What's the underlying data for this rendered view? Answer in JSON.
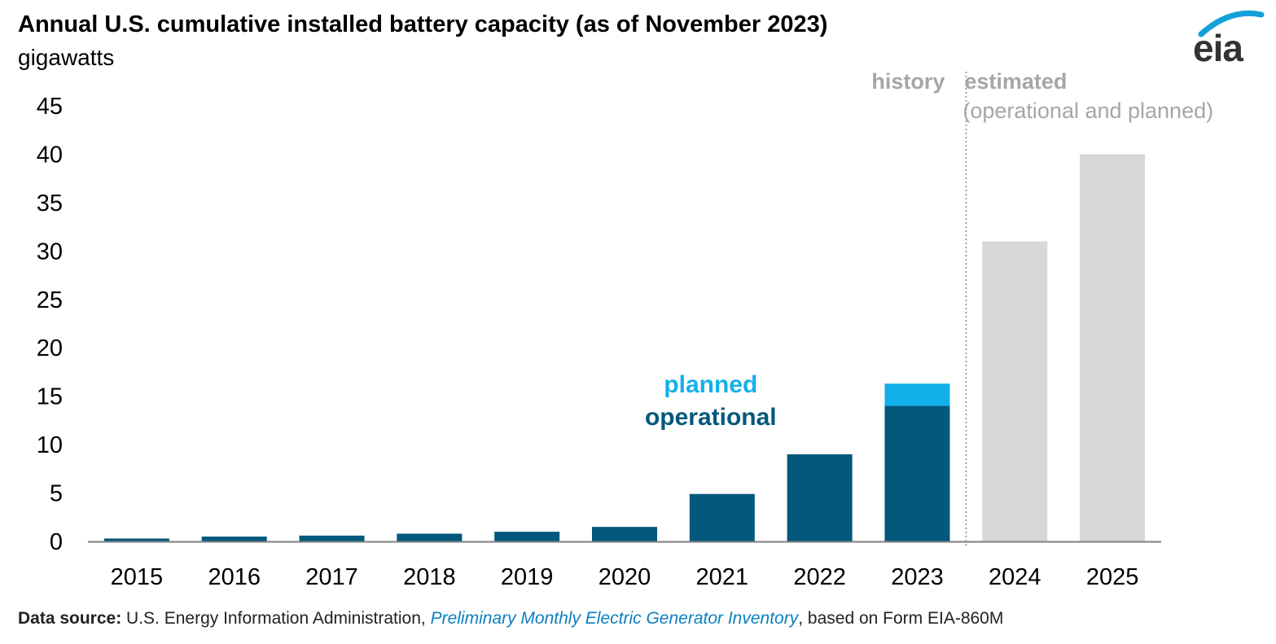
{
  "title": "Annual U.S. cumulative installed battery capacity (as of November 2023)",
  "subtitle": "gigawatts",
  "logo_text": "eia",
  "source": {
    "label": "Data source:",
    "prefix": " U.S. Energy Information Administration, ",
    "publication": "Preliminary Monthly Electric Generator Inventory",
    "suffix": ", based on Form EIA-860M"
  },
  "colors": {
    "operational": "#03587b",
    "planned": "#12b0ea",
    "estimated": "#d7d7d7",
    "region_label": "#a6a6a6"
  },
  "chart_data": {
    "type": "bar",
    "stacked": true,
    "categories": [
      "2015",
      "2016",
      "2017",
      "2018",
      "2019",
      "2020",
      "2021",
      "2022",
      "2023",
      "2024",
      "2025"
    ],
    "series": [
      {
        "name": "operational",
        "values": [
          0.3,
          0.5,
          0.6,
          0.8,
          1.0,
          1.5,
          4.9,
          9.0,
          14.0,
          null,
          null
        ]
      },
      {
        "name": "planned",
        "values": [
          null,
          null,
          null,
          null,
          null,
          null,
          null,
          null,
          2.3,
          null,
          null
        ]
      },
      {
        "name": "estimated (operational and planned)",
        "values": [
          null,
          null,
          null,
          null,
          null,
          null,
          null,
          null,
          null,
          31.0,
          40.0
        ]
      }
    ],
    "y_ticks": [
      0,
      5,
      10,
      15,
      20,
      25,
      30,
      35,
      40,
      45
    ],
    "ylim": [
      0,
      45
    ],
    "grid": false,
    "legend": {
      "planned": "planned",
      "operational": "operational",
      "placement": "inside, above 2021"
    },
    "annotations": {
      "history": "history",
      "estimated": "estimated",
      "estimated_note": "(operational and planned)"
    }
  }
}
